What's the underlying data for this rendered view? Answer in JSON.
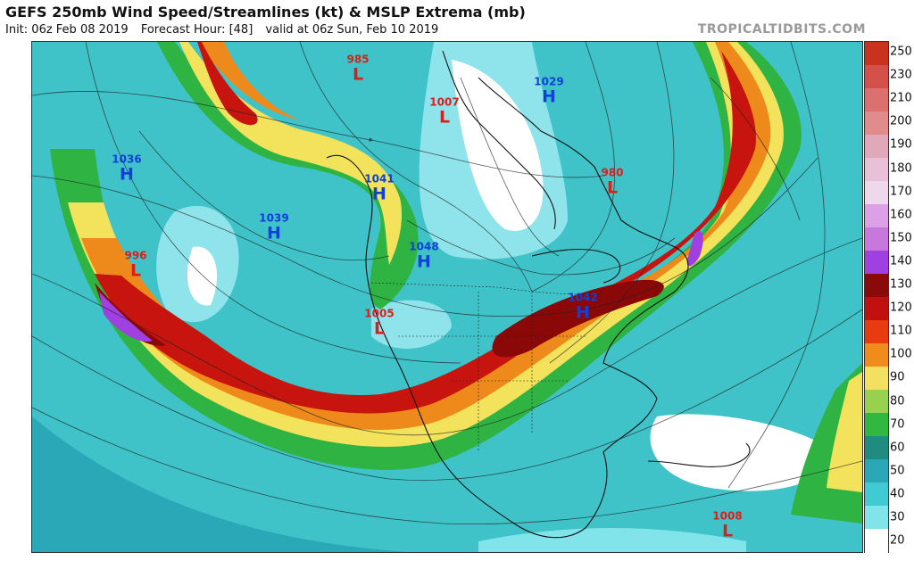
{
  "header": {
    "title": "GEFS 250mb Wind Speed/Streamlines (kt) & MSLP Extrema (mb)",
    "init": "Init: 06z Feb 08 2019",
    "forecast_hour": "Forecast Hour: [48]",
    "valid": "valid at 06z Sun, Feb 10 2019",
    "brand": "TROPICALTIDBITS.COM"
  },
  "colorbar": {
    "labels": [
      "250",
      "230",
      "210",
      "200",
      "190",
      "180",
      "170",
      "160",
      "150",
      "140",
      "130",
      "120",
      "110",
      "100",
      "90",
      "80",
      "70",
      "60",
      "50",
      "40",
      "30",
      "20"
    ],
    "colors": [
      "#c8321e",
      "#d4504a",
      "#dc7070",
      "#e08c8c",
      "#e0a8b8",
      "#e8c0d8",
      "#f0d8ec",
      "#dca0e6",
      "#c878dc",
      "#a040e0",
      "#8a0a0a",
      "#c01010",
      "#e83c10",
      "#f08c1c",
      "#f4e060",
      "#98d050",
      "#30b840",
      "#208c80",
      "#2aa8b8",
      "#40cad4",
      "#80e4ea",
      "#ffffff"
    ]
  },
  "pressure_centers": [
    {
      "type": "L",
      "value": "985",
      "color": "#d8201a"
    },
    {
      "type": "L",
      "value": "1007",
      "color": "#d8201a"
    },
    {
      "type": "H",
      "value": "1029",
      "color": "#1040d8"
    },
    {
      "type": "H",
      "value": "1036",
      "color": "#1040d8"
    },
    {
      "type": "H",
      "value": "1041",
      "color": "#1040d8"
    },
    {
      "type": "H",
      "value": "1039",
      "color": "#1040d8"
    },
    {
      "type": "L",
      "value": "980",
      "color": "#d8201a"
    },
    {
      "type": "H",
      "value": "1048",
      "color": "#1040d8"
    },
    {
      "type": "L",
      "value": "996",
      "color": "#d8201a"
    },
    {
      "type": "H",
      "value": "1042",
      "color": "#1040d8"
    },
    {
      "type": "L",
      "value": "1005",
      "color": "#d8201a"
    },
    {
      "type": "L",
      "value": "1008",
      "color": "#d8201a"
    }
  ]
}
